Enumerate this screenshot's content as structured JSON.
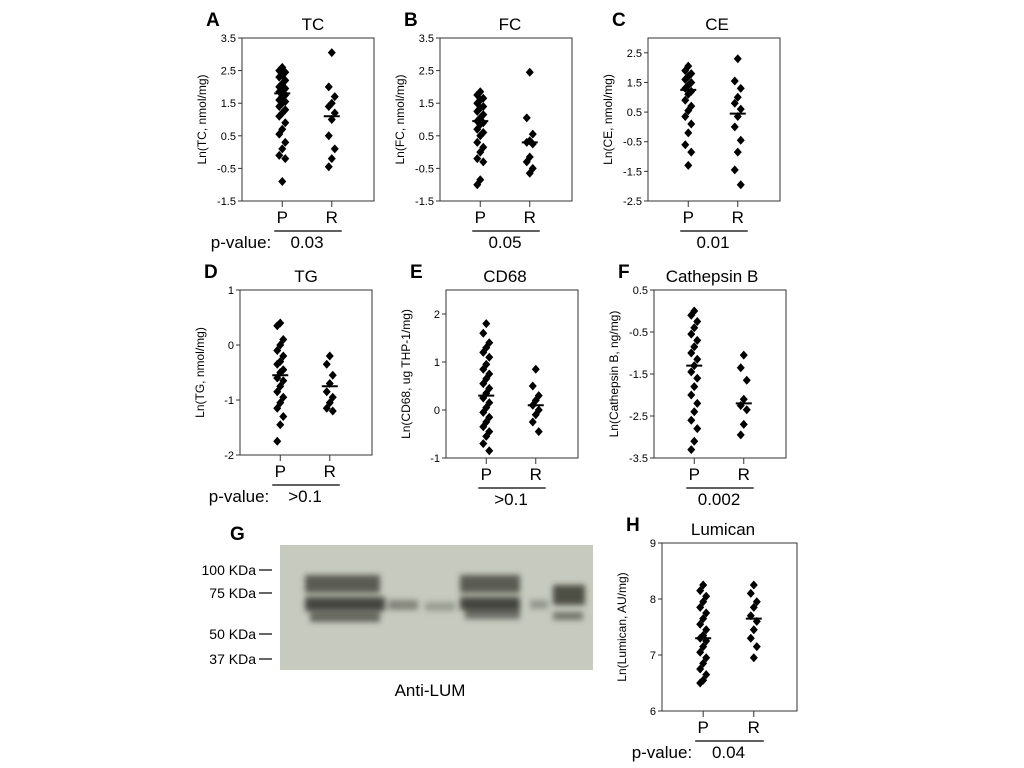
{
  "chart_data": [
    {
      "panel": "A",
      "type": "scatter",
      "title": "TC",
      "ylabel": "Ln(TC, nmol/mg)",
      "ylim": [
        -1.5,
        3.5
      ],
      "yticks": [
        "3.5",
        "2.5",
        "1.5",
        "0.5",
        "-0.5",
        "-1.5"
      ],
      "categories": [
        "P",
        "R"
      ],
      "series": [
        {
          "values": [
            2.6,
            2.5,
            2.45,
            2.35,
            2.3,
            2.2,
            2.1,
            2.0,
            1.95,
            1.9,
            1.85,
            1.75,
            1.7,
            1.6,
            1.55,
            1.5,
            1.4,
            1.3,
            1.2,
            1.1,
            0.9,
            0.7,
            0.55,
            0.3,
            0.1,
            -0.1,
            -0.2,
            -0.9
          ],
          "mean": 1.8
        },
        {
          "values": [
            3.05,
            2.0,
            1.7,
            1.5,
            1.4,
            1.2,
            1.0,
            0.5,
            0.1,
            -0.2,
            -0.45
          ],
          "mean": 1.1
        }
      ],
      "pvalue_label": "p-value:",
      "pvalue": "0.03"
    },
    {
      "panel": "B",
      "type": "scatter",
      "title": "FC",
      "ylabel": "Ln(FC, nmol/mg)",
      "ylim": [
        -1.5,
        3.5
      ],
      "yticks": [
        "3.5",
        "2.5",
        "1.5",
        "0.5",
        "-0.5",
        "-1.5"
      ],
      "categories": [
        "P",
        "R"
      ],
      "series": [
        {
          "values": [
            1.85,
            1.75,
            1.65,
            1.6,
            1.5,
            1.4,
            1.35,
            1.25,
            1.15,
            1.05,
            0.95,
            0.9,
            0.85,
            0.7,
            0.6,
            0.5,
            0.3,
            0.15,
            0.0,
            -0.2,
            -0.3,
            -0.85,
            -1.0
          ],
          "mean": 0.95
        },
        {
          "values": [
            2.45,
            1.05,
            0.55,
            0.35,
            0.3,
            0.25,
            -0.15,
            -0.3,
            -0.5,
            -0.65
          ],
          "mean": 0.3
        }
      ],
      "pvalue": "0.05"
    },
    {
      "panel": "C",
      "type": "scatter",
      "title": "CE",
      "ylabel": "Ln(CE, nmol/mg)",
      "ylim": [
        -2.5,
        3.0
      ],
      "yticks": [
        "2.5",
        "1.5",
        "0.5",
        "-0.5",
        "-1.5",
        "-2.5"
      ],
      "categories": [
        "P",
        "R"
      ],
      "series": [
        {
          "values": [
            2.05,
            1.9,
            1.8,
            1.7,
            1.6,
            1.5,
            1.4,
            1.3,
            1.2,
            1.1,
            0.9,
            0.7,
            0.55,
            0.35,
            0.1,
            -0.2,
            -0.6,
            -0.85,
            -1.3
          ],
          "mean": 1.25
        },
        {
          "values": [
            2.3,
            1.55,
            1.3,
            1.0,
            0.8,
            0.6,
            0.35,
            0.0,
            -0.45,
            -0.85,
            -1.45,
            -1.95
          ],
          "mean": 0.45
        }
      ],
      "pvalue": "0.01"
    },
    {
      "panel": "D",
      "type": "scatter",
      "title": "TG",
      "ylabel": "Ln(TG, nmol/mg)",
      "ylim": [
        -2,
        1
      ],
      "yticks": [
        "1",
        "0",
        "-1",
        "-2"
      ],
      "categories": [
        "P",
        "R"
      ],
      "series": [
        {
          "values": [
            0.4,
            0.35,
            0.1,
            0.0,
            -0.1,
            -0.2,
            -0.3,
            -0.35,
            -0.45,
            -0.5,
            -0.6,
            -0.65,
            -0.75,
            -0.85,
            -0.95,
            -1.05,
            -1.15,
            -1.3,
            -1.45,
            -1.75
          ],
          "mean": -0.55
        },
        {
          "values": [
            -0.2,
            -0.35,
            -0.55,
            -0.7,
            -0.85,
            -0.95,
            -1.05,
            -1.15,
            -1.2
          ],
          "mean": -0.75
        }
      ],
      "pvalue_label": "p-value:",
      "pvalue": ">0.1"
    },
    {
      "panel": "E",
      "type": "scatter",
      "title": "CD68",
      "ylabel": "Ln(CD68, ug THP-1/mg)",
      "ylim": [
        -1,
        2.5
      ],
      "yticks": [
        "2",
        "1",
        "0",
        "-1"
      ],
      "categories": [
        "P",
        "R"
      ],
      "series": [
        {
          "values": [
            1.8,
            1.6,
            1.4,
            1.3,
            1.2,
            1.1,
            0.95,
            0.85,
            0.75,
            0.65,
            0.55,
            0.45,
            0.35,
            0.25,
            0.15,
            0.05,
            -0.05,
            -0.15,
            -0.25,
            -0.35,
            -0.45,
            -0.55,
            -0.7,
            -0.85
          ],
          "mean": 0.3
        },
        {
          "values": [
            0.85,
            0.5,
            0.3,
            0.2,
            0.1,
            0.0,
            -0.1,
            -0.25,
            -0.45
          ],
          "mean": 0.1
        }
      ],
      "pvalue": ">0.1"
    },
    {
      "panel": "F",
      "type": "scatter",
      "title": "Cathepsin B",
      "ylabel": "Ln(Cathepsin B, ng/mg)",
      "ylim": [
        -3.5,
        0.5
      ],
      "yticks": [
        "0.5",
        "-0.5",
        "-1.5",
        "-2.5",
        "-3.5"
      ],
      "categories": [
        "P",
        "R"
      ],
      "series": [
        {
          "values": [
            0.0,
            -0.1,
            -0.25,
            -0.4,
            -0.55,
            -0.7,
            -0.85,
            -1.0,
            -1.15,
            -1.3,
            -1.45,
            -1.6,
            -1.8,
            -2.0,
            -2.2,
            -2.4,
            -2.6,
            -2.8,
            -3.1,
            -3.3
          ],
          "mean": -1.3
        },
        {
          "values": [
            -1.05,
            -1.35,
            -1.65,
            -2.1,
            -2.25,
            -2.35,
            -2.7,
            -2.95
          ],
          "mean": -2.2
        }
      ],
      "pvalue": "0.002"
    },
    {
      "panel": "H",
      "type": "scatter",
      "title": "Lumican",
      "ylabel": "Ln(Lumican, AU/mg)",
      "ylim": [
        6,
        9
      ],
      "yticks": [
        "9",
        "8",
        "7",
        "6"
      ],
      "categories": [
        "P",
        "R"
      ],
      "series": [
        {
          "values": [
            8.25,
            8.15,
            8.05,
            7.95,
            7.85,
            7.75,
            7.65,
            7.55,
            7.45,
            7.35,
            7.3,
            7.25,
            7.15,
            7.05,
            6.95,
            6.85,
            6.75,
            6.65,
            6.55,
            6.5
          ],
          "mean": 7.3
        },
        {
          "values": [
            8.25,
            8.1,
            7.95,
            7.85,
            7.7,
            7.6,
            7.45,
            7.3,
            7.15,
            6.95
          ],
          "mean": 7.65
        }
      ],
      "pvalue_label": "p-value:",
      "pvalue": "0.04"
    }
  ],
  "blot": {
    "panel": "G",
    "markers": [
      "100 KDa",
      "75 KDa",
      "50 KDa",
      "37 KDa"
    ],
    "caption": "Anti-LUM"
  },
  "colors": {
    "marker": "#000000",
    "blot_background": "#c7cbbf",
    "blot_band": "#2e3028"
  }
}
